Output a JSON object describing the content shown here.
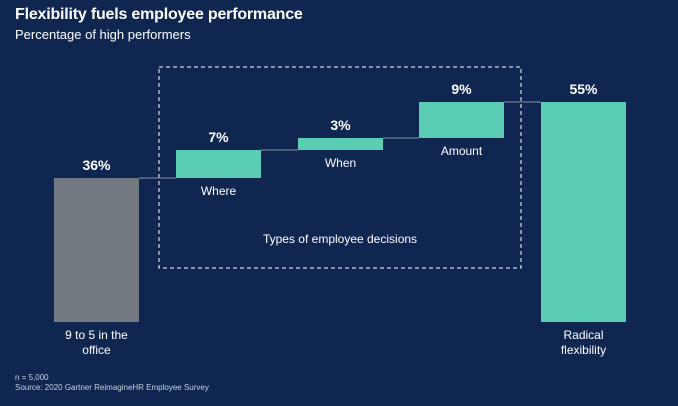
{
  "chart_data": {
    "type": "waterfall",
    "title": "Flexibility fuels employee performance",
    "subtitle": "Percentage of high performers",
    "unit": "%",
    "steps": [
      {
        "label": "9 to 5 in the office",
        "label_lines": [
          "9 to 5 in the",
          "office"
        ],
        "value": 36,
        "value_label": "36%",
        "kind": "total"
      },
      {
        "label": "Where",
        "label_lines": [
          "Where"
        ],
        "value": 7,
        "value_label": "7%",
        "kind": "delta"
      },
      {
        "label": "When",
        "label_lines": [
          "When"
        ],
        "value": 3,
        "value_label": "3%",
        "kind": "delta"
      },
      {
        "label": "Amount",
        "label_lines": [
          "Amount"
        ],
        "value": 9,
        "value_label": "9%",
        "kind": "delta"
      },
      {
        "label": "Radical flexibility",
        "label_lines": [
          "Radical",
          "flexibility"
        ],
        "value": 55,
        "value_label": "55%",
        "kind": "total"
      }
    ],
    "group_annotation": "Types of employee decisions",
    "colors": {
      "background": "#0f2650",
      "baseline_bar": "#737980",
      "delta_bar": "#5ccdb5",
      "total_bar": "#5ccdb5",
      "connector": "#8892a6",
      "dashed_box": "#ffffff",
      "text": "#ffffff"
    }
  },
  "footnote": {
    "sample": "n = 5,000",
    "source": "Source: 2020 Gartner ReimagineHR Employee Survey"
  }
}
